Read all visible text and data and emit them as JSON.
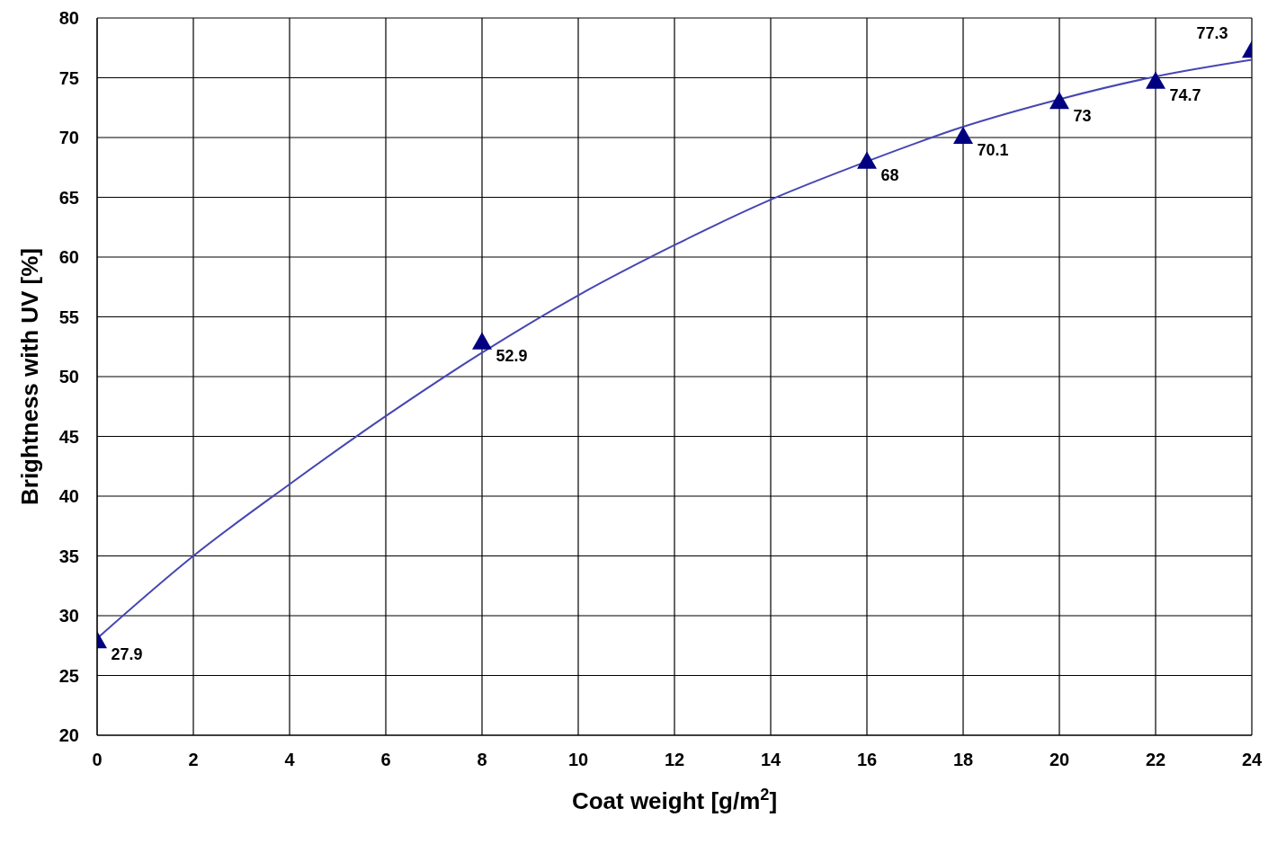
{
  "chart_data": {
    "type": "scatter",
    "xlabel": "Coat weight [g/m$^{2}$]",
    "ylabel": "Brightness with UV [%]",
    "xlim": [
      0,
      24
    ],
    "ylim": [
      20,
      80
    ],
    "xticks": [
      0,
      2,
      4,
      6,
      8,
      10,
      12,
      14,
      16,
      18,
      20,
      22,
      24
    ],
    "yticks": [
      20,
      25,
      30,
      35,
      40,
      45,
      50,
      55,
      60,
      65,
      70,
      75,
      80
    ],
    "grid": true,
    "series": [
      {
        "type": "line",
        "color": "#4646b4",
        "marker": "none",
        "line_style": "solid",
        "x": [
          0,
          2,
          4,
          6,
          8,
          10,
          12,
          14,
          16,
          18,
          20,
          22,
          24
        ],
        "values": [
          28.1,
          35,
          41,
          46.7,
          52,
          56.8,
          61,
          64.8,
          68,
          70.9,
          73.2,
          75.1,
          76.5
        ]
      },
      {
        "color": "#000080",
        "marker": "triangle",
        "x": [
          0,
          8,
          16,
          18,
          20,
          22,
          24
        ],
        "values": [
          27.9,
          52.9,
          68,
          70.1,
          73,
          74.7,
          77.3
        ],
        "value_labels": [
          "27.9",
          "52.9",
          "68",
          "70.1",
          "73",
          "74.7",
          "77.3"
        ]
      }
    ]
  }
}
